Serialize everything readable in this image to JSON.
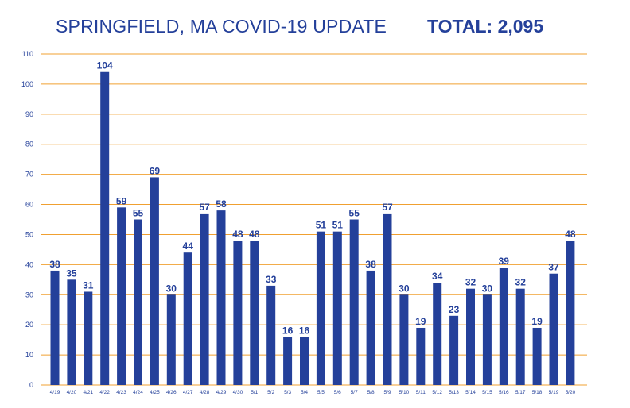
{
  "header": {
    "title": "SPRINGFIELD, MA COVID-19 UPDATE",
    "total": "TOTAL: 2,095"
  },
  "colors": {
    "bar": "#24409a",
    "grid": "#f0a030",
    "text": "#24409a"
  },
  "chart_data": {
    "type": "bar",
    "title": "SPRINGFIELD, MA COVID-19 UPDATE",
    "subtitle": "TOTAL: 2,095",
    "categories": [
      "4/19",
      "4/20",
      "4/21",
      "4/22",
      "4/23",
      "4/24",
      "4/25",
      "4/26",
      "4/27",
      "4/28",
      "4/29",
      "4/30",
      "5/1",
      "5/2",
      "5/3",
      "5/4",
      "5/5",
      "5/6",
      "5/7",
      "5/8",
      "5/9",
      "5/10",
      "5/11",
      "5/12",
      "5/13",
      "5/14",
      "5/15",
      "5/16",
      "5/17",
      "5/18",
      "5/19",
      "5/20"
    ],
    "values": [
      38,
      35,
      31,
      104,
      59,
      55,
      69,
      30,
      44,
      57,
      58,
      48,
      48,
      33,
      16,
      16,
      51,
      51,
      55,
      38,
      57,
      30,
      19,
      34,
      23,
      32,
      30,
      39,
      32,
      19,
      37,
      48
    ],
    "ylim": [
      0,
      110
    ],
    "yticks": [
      0,
      10,
      20,
      30,
      40,
      50,
      60,
      70,
      80,
      90,
      100,
      110
    ],
    "grid": true,
    "data_labels": true,
    "xlabel": "",
    "ylabel": ""
  }
}
